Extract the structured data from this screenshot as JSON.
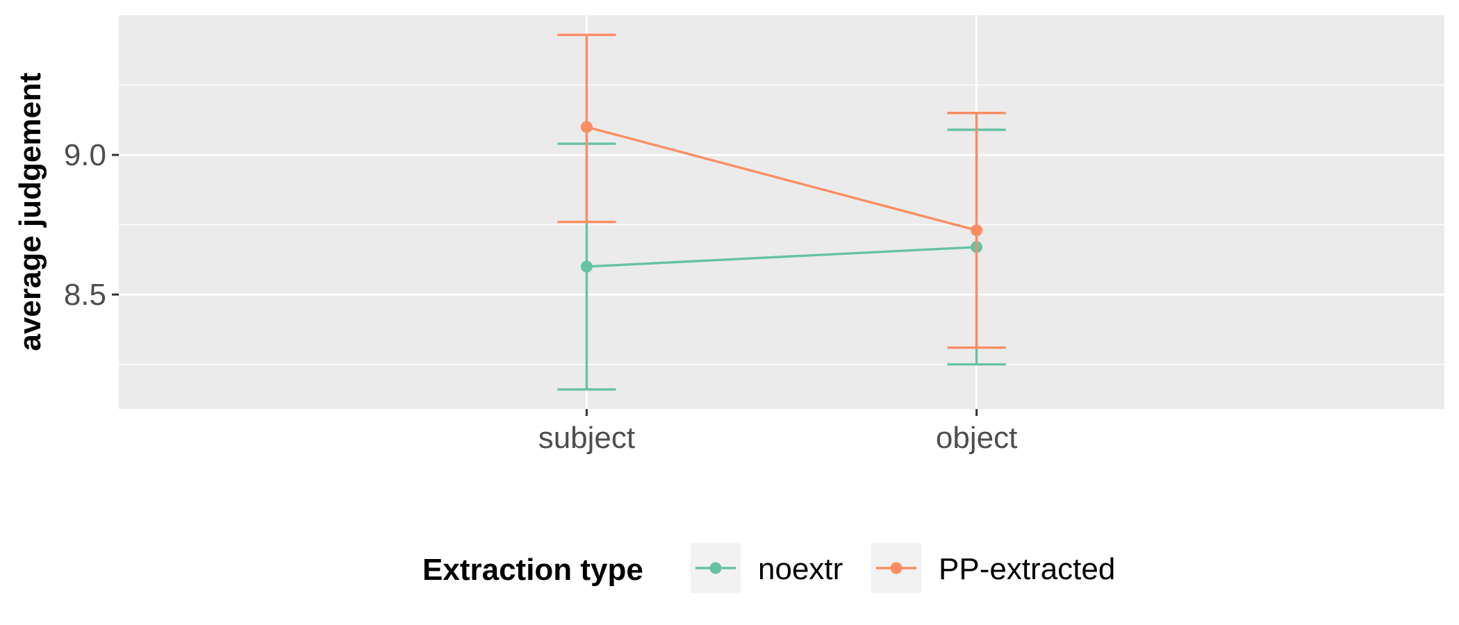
{
  "chart_data": {
    "type": "line",
    "categories": [
      "subject",
      "object"
    ],
    "xlabel": "",
    "ylabel": "average judgement",
    "ylim": [
      8.09,
      9.5
    ],
    "yticks": [
      8.5,
      9.0
    ],
    "ytick_labels": [
      "8.5",
      "9.0"
    ],
    "y_minor_ticks": [
      8.25,
      8.75,
      9.25
    ],
    "grid": true,
    "legend": {
      "title": "Extraction type",
      "position": "bottom"
    },
    "series": [
      {
        "name": "noextr",
        "color": "#66c2a5",
        "values": [
          8.6,
          8.67
        ],
        "lower": [
          8.16,
          8.25
        ],
        "upper": [
          9.04,
          9.09
        ]
      },
      {
        "name": "PP-extracted",
        "color": "#fc8d62",
        "values": [
          9.1,
          8.73
        ],
        "lower": [
          8.76,
          8.31
        ],
        "upper": [
          9.43,
          9.15
        ]
      }
    ]
  }
}
